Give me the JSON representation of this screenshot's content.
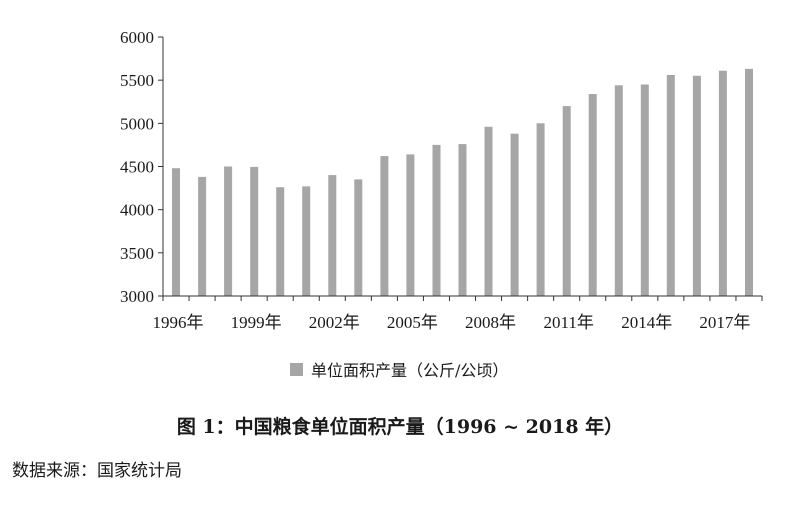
{
  "chart_data": {
    "type": "bar",
    "x": [
      1996,
      1997,
      1998,
      1999,
      2000,
      2001,
      2002,
      2003,
      2004,
      2005,
      2006,
      2007,
      2008,
      2009,
      2010,
      2011,
      2012,
      2013,
      2014,
      2015,
      2016,
      2017,
      2018
    ],
    "x_tick_labels": [
      "1996年",
      "1999年",
      "2002年",
      "2005年",
      "2008年",
      "2011年",
      "2014年",
      "2017年"
    ],
    "x_tick_years": [
      1996,
      1999,
      2002,
      2005,
      2008,
      2011,
      2014,
      2017
    ],
    "series": [
      {
        "name": "单位面积产量（公斤/公顷）",
        "values": [
          4480,
          4380,
          4500,
          4495,
          4260,
          4270,
          4400,
          4350,
          4620,
          4640,
          4750,
          4760,
          4960,
          4880,
          5000,
          5200,
          5340,
          5440,
          5450,
          5560,
          5550,
          5610,
          5630
        ]
      }
    ],
    "ylim": [
      3000,
      6000
    ],
    "y_ticks": [
      3000,
      3500,
      4000,
      4500,
      5000,
      5500,
      6000
    ],
    "grid": false,
    "legend_position": "bottom-center",
    "bar_color": "#a6a6a6",
    "axis_color": "#333333"
  },
  "caption": "图 1：中国粮食单位面积产量（1996 ~ 2018 年）",
  "source": "数据来源：国家统计局"
}
